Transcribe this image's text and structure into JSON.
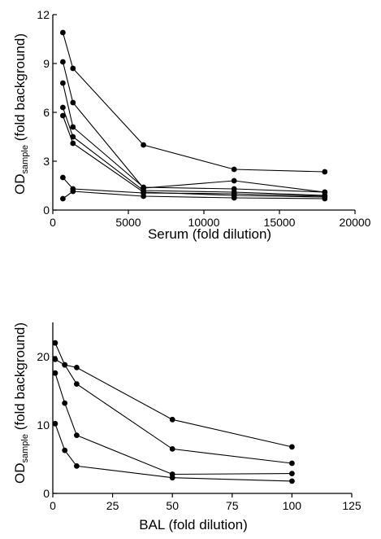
{
  "chart_data": [
    {
      "type": "line",
      "xlabel": "Serum (fold dilution)",
      "ylabel_main": "OD",
      "ylabel_sub": "sample",
      "ylabel_tail": " (fold background)",
      "xlim": [
        0,
        20000
      ],
      "ylim": [
        0,
        12
      ],
      "xticks": [
        0,
        5000,
        10000,
        15000,
        20000
      ],
      "yticks": [
        0,
        3,
        6,
        9,
        12
      ],
      "series": [
        {
          "x": [
            667,
            1333,
            6000,
            12000,
            18000
          ],
          "y": [
            10.9,
            8.7,
            4.0,
            2.5,
            2.35
          ]
        },
        {
          "x": [
            667,
            1333,
            6000,
            12000,
            18000
          ],
          "y": [
            9.1,
            6.6,
            1.35,
            1.8,
            1.1
          ]
        },
        {
          "x": [
            667,
            1333,
            6000,
            12000,
            18000
          ],
          "y": [
            7.8,
            5.1,
            1.4,
            1.3,
            1.1
          ]
        },
        {
          "x": [
            667,
            1333,
            6000,
            12000,
            18000
          ],
          "y": [
            6.3,
            4.5,
            1.2,
            1.1,
            0.9
          ]
        },
        {
          "x": [
            667,
            1333,
            6000,
            12000,
            18000
          ],
          "y": [
            5.8,
            4.1,
            1.1,
            0.9,
            0.8
          ]
        },
        {
          "x": [
            667,
            1333,
            6000,
            12000,
            18000
          ],
          "y": [
            2.0,
            1.3,
            1.05,
            1.0,
            0.85
          ]
        },
        {
          "x": [
            667,
            1333,
            6000,
            12000,
            18000
          ],
          "y": [
            0.7,
            1.15,
            0.85,
            0.75,
            0.7
          ]
        }
      ]
    },
    {
      "type": "line",
      "xlabel": "BAL (fold dilution)",
      "ylabel_main": "OD",
      "ylabel_sub": "sample",
      "ylabel_tail": " (fold background)",
      "xlim": [
        0,
        125
      ],
      "ylim": [
        0,
        25
      ],
      "xticks": [
        0,
        25,
        50,
        75,
        100,
        125
      ],
      "yticks": [
        0,
        10,
        20
      ],
      "series": [
        {
          "x": [
            1,
            5,
            10,
            50,
            100
          ],
          "y": [
            22.0,
            18.8,
            18.4,
            10.8,
            6.8
          ]
        },
        {
          "x": [
            1,
            5,
            10,
            50,
            100
          ],
          "y": [
            19.6,
            18.8,
            16.0,
            6.5,
            4.4
          ]
        },
        {
          "x": [
            1,
            5,
            10,
            50,
            100
          ],
          "y": [
            17.6,
            13.2,
            8.5,
            2.8,
            2.9
          ]
        },
        {
          "x": [
            1,
            5,
            10,
            50,
            100
          ],
          "y": [
            10.2,
            6.3,
            4.0,
            2.3,
            1.8
          ]
        }
      ]
    }
  ]
}
